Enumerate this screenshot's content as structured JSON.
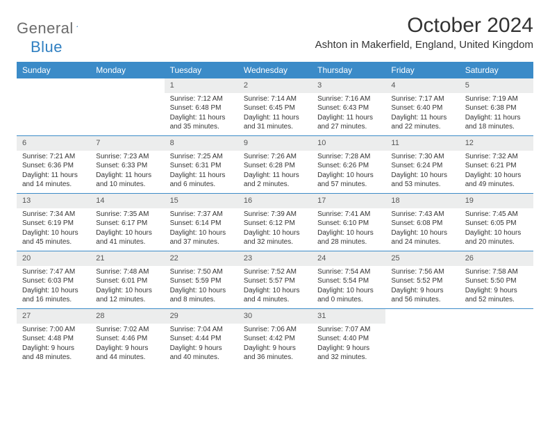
{
  "logo": {
    "word1": "General",
    "word2": "Blue"
  },
  "title": "October 2024",
  "location": "Ashton in Makerfield, England, United Kingdom",
  "colors": {
    "header_bg": "#3b8bc8",
    "header_text": "#ffffff",
    "daynum_bg": "#eceded",
    "week_border": "#3b8bc8",
    "body_text": "#333333",
    "logo_gray": "#6b6b6b",
    "logo_blue": "#2f7fc1"
  },
  "day_headers": [
    "Sunday",
    "Monday",
    "Tuesday",
    "Wednesday",
    "Thursday",
    "Friday",
    "Saturday"
  ],
  "weeks": [
    [
      null,
      null,
      {
        "n": "1",
        "sr": "Sunrise: 7:12 AM",
        "ss": "Sunset: 6:48 PM",
        "dl": "Daylight: 11 hours and 35 minutes."
      },
      {
        "n": "2",
        "sr": "Sunrise: 7:14 AM",
        "ss": "Sunset: 6:45 PM",
        "dl": "Daylight: 11 hours and 31 minutes."
      },
      {
        "n": "3",
        "sr": "Sunrise: 7:16 AM",
        "ss": "Sunset: 6:43 PM",
        "dl": "Daylight: 11 hours and 27 minutes."
      },
      {
        "n": "4",
        "sr": "Sunrise: 7:17 AM",
        "ss": "Sunset: 6:40 PM",
        "dl": "Daylight: 11 hours and 22 minutes."
      },
      {
        "n": "5",
        "sr": "Sunrise: 7:19 AM",
        "ss": "Sunset: 6:38 PM",
        "dl": "Daylight: 11 hours and 18 minutes."
      }
    ],
    [
      {
        "n": "6",
        "sr": "Sunrise: 7:21 AM",
        "ss": "Sunset: 6:36 PM",
        "dl": "Daylight: 11 hours and 14 minutes."
      },
      {
        "n": "7",
        "sr": "Sunrise: 7:23 AM",
        "ss": "Sunset: 6:33 PM",
        "dl": "Daylight: 11 hours and 10 minutes."
      },
      {
        "n": "8",
        "sr": "Sunrise: 7:25 AM",
        "ss": "Sunset: 6:31 PM",
        "dl": "Daylight: 11 hours and 6 minutes."
      },
      {
        "n": "9",
        "sr": "Sunrise: 7:26 AM",
        "ss": "Sunset: 6:28 PM",
        "dl": "Daylight: 11 hours and 2 minutes."
      },
      {
        "n": "10",
        "sr": "Sunrise: 7:28 AM",
        "ss": "Sunset: 6:26 PM",
        "dl": "Daylight: 10 hours and 57 minutes."
      },
      {
        "n": "11",
        "sr": "Sunrise: 7:30 AM",
        "ss": "Sunset: 6:24 PM",
        "dl": "Daylight: 10 hours and 53 minutes."
      },
      {
        "n": "12",
        "sr": "Sunrise: 7:32 AM",
        "ss": "Sunset: 6:21 PM",
        "dl": "Daylight: 10 hours and 49 minutes."
      }
    ],
    [
      {
        "n": "13",
        "sr": "Sunrise: 7:34 AM",
        "ss": "Sunset: 6:19 PM",
        "dl": "Daylight: 10 hours and 45 minutes."
      },
      {
        "n": "14",
        "sr": "Sunrise: 7:35 AM",
        "ss": "Sunset: 6:17 PM",
        "dl": "Daylight: 10 hours and 41 minutes."
      },
      {
        "n": "15",
        "sr": "Sunrise: 7:37 AM",
        "ss": "Sunset: 6:14 PM",
        "dl": "Daylight: 10 hours and 37 minutes."
      },
      {
        "n": "16",
        "sr": "Sunrise: 7:39 AM",
        "ss": "Sunset: 6:12 PM",
        "dl": "Daylight: 10 hours and 32 minutes."
      },
      {
        "n": "17",
        "sr": "Sunrise: 7:41 AM",
        "ss": "Sunset: 6:10 PM",
        "dl": "Daylight: 10 hours and 28 minutes."
      },
      {
        "n": "18",
        "sr": "Sunrise: 7:43 AM",
        "ss": "Sunset: 6:08 PM",
        "dl": "Daylight: 10 hours and 24 minutes."
      },
      {
        "n": "19",
        "sr": "Sunrise: 7:45 AM",
        "ss": "Sunset: 6:05 PM",
        "dl": "Daylight: 10 hours and 20 minutes."
      }
    ],
    [
      {
        "n": "20",
        "sr": "Sunrise: 7:47 AM",
        "ss": "Sunset: 6:03 PM",
        "dl": "Daylight: 10 hours and 16 minutes."
      },
      {
        "n": "21",
        "sr": "Sunrise: 7:48 AM",
        "ss": "Sunset: 6:01 PM",
        "dl": "Daylight: 10 hours and 12 minutes."
      },
      {
        "n": "22",
        "sr": "Sunrise: 7:50 AM",
        "ss": "Sunset: 5:59 PM",
        "dl": "Daylight: 10 hours and 8 minutes."
      },
      {
        "n": "23",
        "sr": "Sunrise: 7:52 AM",
        "ss": "Sunset: 5:57 PM",
        "dl": "Daylight: 10 hours and 4 minutes."
      },
      {
        "n": "24",
        "sr": "Sunrise: 7:54 AM",
        "ss": "Sunset: 5:54 PM",
        "dl": "Daylight: 10 hours and 0 minutes."
      },
      {
        "n": "25",
        "sr": "Sunrise: 7:56 AM",
        "ss": "Sunset: 5:52 PM",
        "dl": "Daylight: 9 hours and 56 minutes."
      },
      {
        "n": "26",
        "sr": "Sunrise: 7:58 AM",
        "ss": "Sunset: 5:50 PM",
        "dl": "Daylight: 9 hours and 52 minutes."
      }
    ],
    [
      {
        "n": "27",
        "sr": "Sunrise: 7:00 AM",
        "ss": "Sunset: 4:48 PM",
        "dl": "Daylight: 9 hours and 48 minutes."
      },
      {
        "n": "28",
        "sr": "Sunrise: 7:02 AM",
        "ss": "Sunset: 4:46 PM",
        "dl": "Daylight: 9 hours and 44 minutes."
      },
      {
        "n": "29",
        "sr": "Sunrise: 7:04 AM",
        "ss": "Sunset: 4:44 PM",
        "dl": "Daylight: 9 hours and 40 minutes."
      },
      {
        "n": "30",
        "sr": "Sunrise: 7:06 AM",
        "ss": "Sunset: 4:42 PM",
        "dl": "Daylight: 9 hours and 36 minutes."
      },
      {
        "n": "31",
        "sr": "Sunrise: 7:07 AM",
        "ss": "Sunset: 4:40 PM",
        "dl": "Daylight: 9 hours and 32 minutes."
      },
      null,
      null
    ]
  ]
}
